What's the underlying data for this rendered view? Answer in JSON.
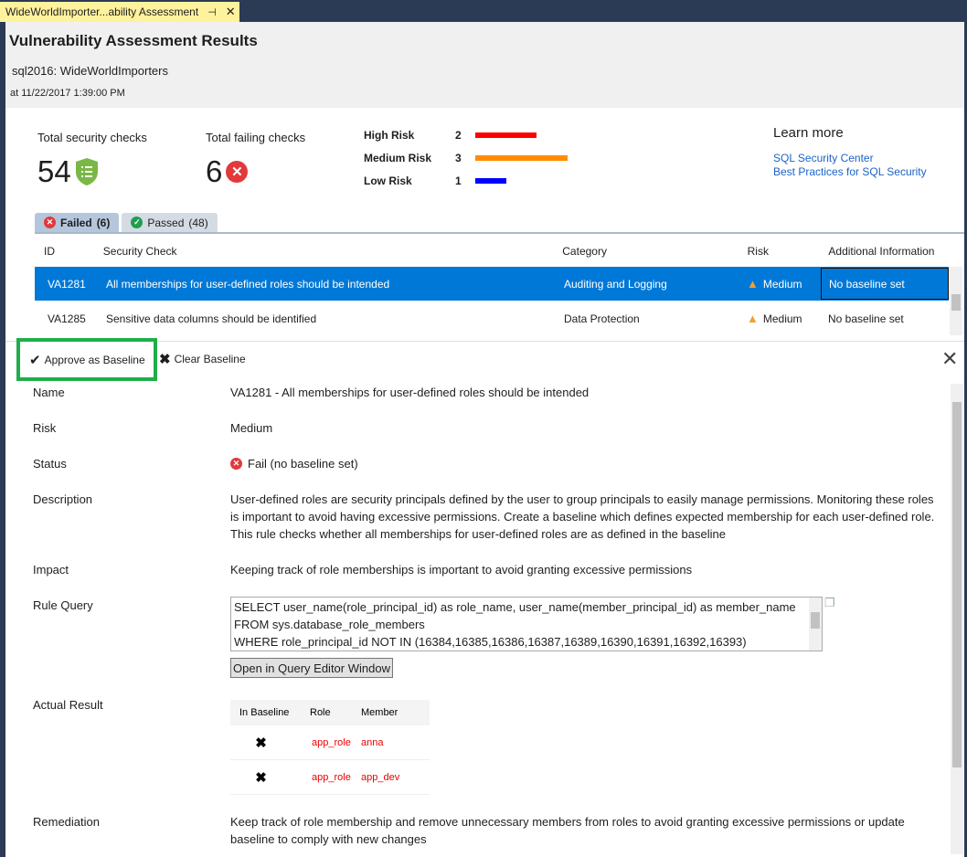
{
  "tab": {
    "title": "WideWorldImporter...ability Assessment",
    "pin": "⊣",
    "close": "✕"
  },
  "header": {
    "title": "Vulnerability Assessment Results",
    "server": "sql2016:  WideWorldImporters",
    "timestamp": "at 11/22/2017 1:39:00 PM"
  },
  "stats": {
    "total_label": "Total security checks",
    "total": "54",
    "failing_label": "Total failing checks",
    "failing": "6"
  },
  "risks": [
    {
      "label": "High Risk",
      "count": "2",
      "color": "#ff0000",
      "value": 2
    },
    {
      "label": "Medium Risk",
      "count": "3",
      "color": "#ff8c00",
      "value": 3
    },
    {
      "label": "Low Risk",
      "count": "1",
      "color": "#0000ff",
      "value": 1
    }
  ],
  "learn": {
    "title": "Learn more",
    "links": [
      "SQL Security Center",
      "Best Practices for SQL Security"
    ]
  },
  "tabs": [
    {
      "label": "Failed",
      "count": "(6)"
    },
    {
      "label": "Passed",
      "count": "(48)"
    }
  ],
  "table": {
    "columns": [
      "ID",
      "Security Check",
      "Category",
      "Risk",
      "Additional Information"
    ],
    "rows": [
      [
        "VA1281",
        "All memberships for user-defined roles should be intended",
        "Auditing and Logging",
        "Medium",
        "No baseline set"
      ],
      [
        "VA1285",
        "Sensitive data columns should be identified",
        "Data Protection",
        "Medium",
        "No baseline set"
      ]
    ]
  },
  "toolbar": {
    "approve": "Approve as Baseline",
    "clear": "Clear Baseline"
  },
  "details": {
    "name_label": "Name",
    "name": "VA1281 - All memberships for user-defined roles should be intended",
    "risk_label": "Risk",
    "risk": "Medium",
    "status_label": "Status",
    "status": "Fail (no baseline set)",
    "description_label": "Description",
    "description": "User-defined roles are security principals defined by the user to group principals to easily manage permissions. Monitoring these roles is important to avoid having excessive permissions. Create a baseline which defines expected membership for each user-defined role. This rule checks whether all memberships for user-defined roles are as defined in the baseline",
    "impact_label": "Impact",
    "impact": "Keeping track of role memberships is important to avoid granting excessive permissions",
    "query_label": "Rule Query",
    "query": [
      "SELECT user_name(role_principal_id) as role_name, user_name(member_principal_id) as member_name",
      "FROM sys.database_role_members",
      "WHERE role_principal_id NOT IN (16384,16385,16386,16387,16389,16390,16391,16392,16393)"
    ],
    "open_query": "Open in Query Editor Window",
    "result_label": "Actual Result",
    "result_columns": [
      "In Baseline",
      "Role",
      "Member"
    ],
    "result_rows": [
      [
        "✖",
        "app_role",
        "anna"
      ],
      [
        "✖",
        "app_role",
        "app_dev"
      ]
    ],
    "remediation_label": "Remediation",
    "remediation": "Keep track of role membership and remove unnecessary members from roles to avoid granting excessive permissions or update baseline to comply with new changes"
  }
}
